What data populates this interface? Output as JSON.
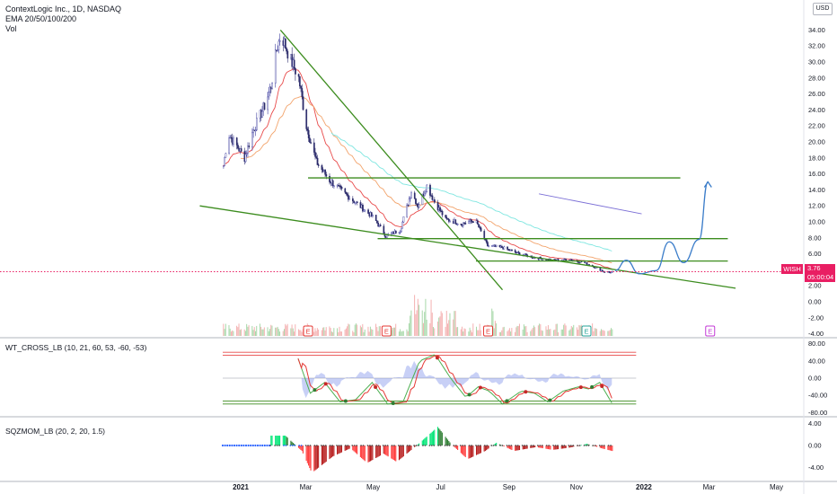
{
  "header": {
    "title": "ContextLogic Inc., 1D, NASDAQ",
    "line2": "EMA 20/50/100/200",
    "line3": "Vol"
  },
  "currency": "USD",
  "price_tag": {
    "symbol": "WISH",
    "price": "3.76",
    "countdown": "05:00:04"
  },
  "panels": {
    "wt": {
      "title": "WT_CROSS_LB (10, 21, 60, 53, -60, -53)"
    },
    "sqz": {
      "title": "SQZMOM_LB (20, 2, 20, 1.5)"
    }
  },
  "colors": {
    "bull": "#3f3fa0",
    "bear": "#2a2a6a",
    "trendline": "#3c8c1e",
    "projection": "#3a7cc9",
    "ema20": "#e84a4a",
    "ema50": "#f2a36b",
    "ema100": "#7ee6e0",
    "ema200": "#7b6fd6",
    "earnings_past": "#e53935",
    "earnings_next": "#26a69a",
    "earnings_future": "#c33ad6",
    "price_line": "#e91e63"
  },
  "chart_data": [
    {
      "type": "candlestick",
      "title": "ContextLogic Inc., 1D, NASDAQ",
      "yaxis_ticks": [
        "34.00",
        "32.00",
        "30.00",
        "28.00",
        "26.00",
        "24.00",
        "22.00",
        "20.00",
        "18.00",
        "16.00",
        "14.00",
        "12.00",
        "10.00",
        "8.00",
        "6.00",
        "2.00",
        "0.00",
        "-2.00",
        "-4.00"
      ],
      "xaxis_ticks": [
        "2021",
        "Mar",
        "May",
        "Jul",
        "Sep",
        "Nov",
        "2022",
        "Mar",
        "May"
      ],
      "price_anchors": [
        [
          "2020-12-16",
          17.0
        ],
        [
          "2020-12-20",
          21.0
        ],
        [
          "2020-12-28",
          19.5
        ],
        [
          "2021-01-04",
          18.0
        ],
        [
          "2021-01-12",
          21.5
        ],
        [
          "2021-01-22",
          24.5
        ],
        [
          "2021-01-28",
          27.0
        ],
        [
          "2021-02-02",
          31.5
        ],
        [
          "2021-02-06",
          33.5
        ],
        [
          "2021-02-14",
          30.5
        ],
        [
          "2021-02-22",
          28.0
        ],
        [
          "2021-03-01",
          22.0
        ],
        [
          "2021-03-10",
          17.5
        ],
        [
          "2021-03-22",
          15.2
        ],
        [
          "2021-04-05",
          13.5
        ],
        [
          "2021-04-20",
          11.8
        ],
        [
          "2021-05-01",
          10.5
        ],
        [
          "2021-05-12",
          8.2
        ],
        [
          "2021-05-25",
          9.0
        ],
        [
          "2021-06-04",
          13.8
        ],
        [
          "2021-06-10",
          12.0
        ],
        [
          "2021-06-18",
          14.5
        ],
        [
          "2021-06-25",
          12.5
        ],
        [
          "2021-07-05",
          10.3
        ],
        [
          "2021-07-20",
          9.8
        ],
        [
          "2021-08-01",
          10.2
        ],
        [
          "2021-08-12",
          7.0
        ],
        [
          "2021-08-25",
          6.8
        ],
        [
          "2021-09-10",
          6.0
        ],
        [
          "2021-09-25",
          5.5
        ],
        [
          "2021-10-10",
          5.2
        ],
        [
          "2021-10-25",
          5.3
        ],
        [
          "2021-11-05",
          5.0
        ],
        [
          "2021-11-15",
          4.5
        ],
        [
          "2021-11-25",
          3.8
        ],
        [
          "2021-12-01",
          3.7
        ],
        [
          "2021-12-05",
          3.76
        ]
      ],
      "levels": [
        15.5,
        7.9,
        5.1
      ],
      "wedge_upper": {
        "from": [
          "2021-02-06",
          34.0
        ],
        "to": [
          "2021-08-26",
          1.5
        ]
      },
      "wedge_lower": {
        "from": [
          "2020-11-25",
          12.0
        ],
        "to": [
          "2022-03-25",
          1.7
        ]
      },
      "guide_line": {
        "from": [
          "2021-09-28",
          13.5
        ],
        "to": [
          "2021-12-30",
          11.0
        ]
      },
      "projection_path": [
        [
          "2021-12-06",
          3.9
        ],
        [
          "2021-12-16",
          5.2
        ],
        [
          "2021-12-28",
          3.5
        ],
        [
          "2022-01-12",
          3.9
        ],
        [
          "2022-01-24",
          7.5
        ],
        [
          "2022-02-06",
          4.9
        ],
        [
          "2022-02-20",
          7.8
        ],
        [
          "2022-02-28",
          15.0
        ]
      ],
      "earnings_markers": [
        {
          "date": "2021-03-03",
          "label": "E",
          "kind": "past"
        },
        {
          "date": "2021-05-13",
          "label": "E",
          "kind": "past"
        },
        {
          "date": "2021-08-13",
          "label": "E",
          "kind": "past"
        },
        {
          "date": "2021-11-10",
          "label": "E",
          "kind": "next"
        },
        {
          "date": "2022-03-02",
          "label": "E",
          "kind": "future"
        }
      ]
    },
    {
      "type": "oscillator",
      "title": "WT_CROSS_LB (10, 21, 60, 53, -60, -53)",
      "yaxis_ticks": [
        "80.00",
        "40.00",
        "0.00",
        "-40.00",
        "-80.00"
      ],
      "levels": [
        60,
        53,
        -53,
        -60
      ],
      "wt_anchors": [
        [
          "2021-02-20",
          60
        ],
        [
          "2021-03-05",
          -35
        ],
        [
          "2021-03-18",
          -10
        ],
        [
          "2021-04-01",
          -55
        ],
        [
          "2021-04-15",
          -50
        ],
        [
          "2021-04-30",
          -10
        ],
        [
          "2021-05-14",
          -60
        ],
        [
          "2021-05-28",
          -55
        ],
        [
          "2021-06-12",
          40
        ],
        [
          "2021-06-26",
          55
        ],
        [
          "2021-07-10",
          0
        ],
        [
          "2021-07-24",
          -45
        ],
        [
          "2021-08-04",
          -20
        ],
        [
          "2021-08-14",
          -30
        ],
        [
          "2021-08-26",
          -60
        ],
        [
          "2021-09-12",
          -30
        ],
        [
          "2021-09-24",
          -35
        ],
        [
          "2021-10-06",
          -55
        ],
        [
          "2021-10-20",
          -30
        ],
        [
          "2021-11-03",
          -20
        ],
        [
          "2021-11-12",
          -25
        ],
        [
          "2021-11-22",
          -10
        ],
        [
          "2021-12-04",
          -62
        ]
      ]
    },
    {
      "type": "histogram",
      "title": "SQZMOM_LB (20, 2, 20, 1.5)",
      "yaxis_ticks": [
        "4.00",
        "0.00",
        "-4.00"
      ],
      "momentum_anchors": [
        [
          "2021-02-10",
          1.8
        ],
        [
          "2021-02-25",
          -1.0
        ],
        [
          "2021-03-06",
          -5.0
        ],
        [
          "2021-03-25",
          -2.0
        ],
        [
          "2021-04-10",
          -0.5
        ],
        [
          "2021-04-25",
          -3.2
        ],
        [
          "2021-05-10",
          -1.5
        ],
        [
          "2021-05-22",
          -3.0
        ],
        [
          "2021-06-10",
          0.2
        ],
        [
          "2021-06-28",
          3.4
        ],
        [
          "2021-07-10",
          0.3
        ],
        [
          "2021-07-25",
          -2.5
        ],
        [
          "2021-08-10",
          -1.0
        ],
        [
          "2021-08-20",
          0.5
        ],
        [
          "2021-09-05",
          -1.0
        ],
        [
          "2021-09-25",
          -0.3
        ],
        [
          "2021-10-10",
          -0.8
        ],
        [
          "2021-10-25",
          -0.4
        ],
        [
          "2021-11-10",
          0.3
        ],
        [
          "2021-11-25",
          -0.6
        ],
        [
          "2021-12-05",
          -1.1
        ]
      ]
    }
  ]
}
